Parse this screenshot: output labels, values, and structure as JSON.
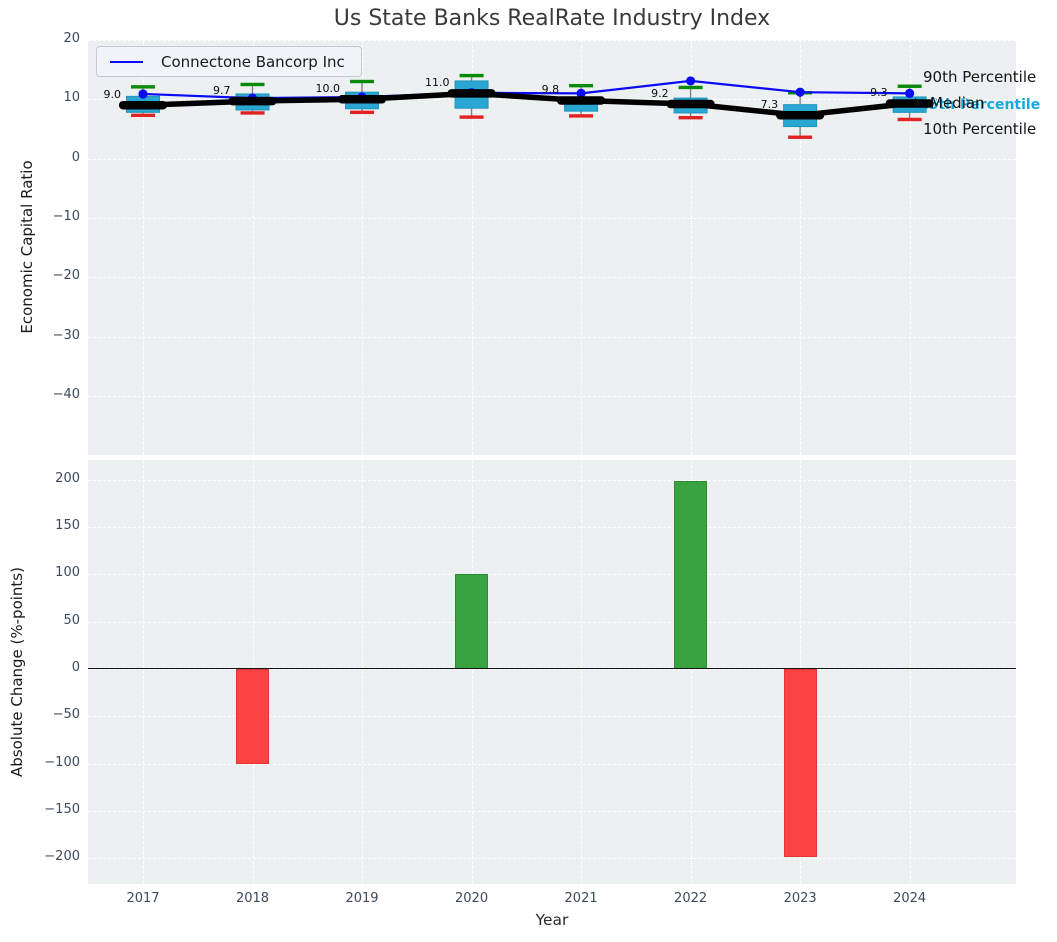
{
  "title": "Us State Banks RealRate Industry Index",
  "legend": {
    "label": "Connectone Bancorp Inc"
  },
  "annotations": {
    "p90": {
      "text": "90th Percentile",
      "color": "#141414"
    },
    "median": {
      "text": "Median",
      "color": "#141414"
    },
    "p25": {
      "text": "25th Percentile",
      "color": "#17a8dc"
    },
    "p10": {
      "text": "10th Percentile",
      "color": "#141414"
    }
  },
  "top_axis": {
    "ylabel": "Economic Capital Ratio"
  },
  "bottom_axis": {
    "ylabel": "Absolute Change (%-points)",
    "xlabel": "Year"
  },
  "colors": {
    "axes_background": "#ecf0f1",
    "grid": "#ffffff",
    "box_fill": "#29a6d2",
    "whisker": "#7f7f7f",
    "cap_90th": "#0a8a0a",
    "cap_10th": "#e32222",
    "median_line": "#000000",
    "company_line": "#0a0af5",
    "bar_positive": "#3aa341",
    "bar_negative": "#fc4343",
    "tick_label": "#3d4a5c",
    "title_color": "#3a3a3a"
  },
  "chart_data": [
    {
      "type": "line",
      "subplot": "top",
      "title": "Us State Banks RealRate Industry Index",
      "ylabel": "Economic Capital Ratio",
      "x": [
        2017,
        2018,
        2019,
        2020,
        2021,
        2022,
        2023,
        2024
      ],
      "yticks": [
        20,
        10,
        0,
        -10,
        -20,
        -30,
        -40
      ],
      "ylim": [
        -50,
        20
      ],
      "grid": true,
      "legend_position": "upper left",
      "series": [
        {
          "name": "Connectone Bancorp Inc",
          "style": "line+circle-marker",
          "color": "#0a0af5",
          "values": [
            10.9,
            10.2,
            10.4,
            11.1,
            11.0,
            13.1,
            11.2,
            11.0
          ]
        },
        {
          "name": "Median",
          "style": "thick-line+dash-marker",
          "color": "#000000",
          "values": [
            9.0,
            9.7,
            10.0,
            11.0,
            9.8,
            9.2,
            7.3,
            9.3
          ],
          "point_labels": [
            "9.0",
            "9.7",
            "10.0",
            "11.0",
            "9.8",
            "9.2",
            "7.3",
            "9.3"
          ]
        }
      ],
      "percentile_boxes": {
        "p90": [
          12.1,
          12.5,
          13.0,
          14.0,
          12.3,
          12.0,
          11.1,
          12.2
        ],
        "p75": [
          10.5,
          10.9,
          11.2,
          13.1,
          10.4,
          10.2,
          9.1,
          10.4
        ],
        "p25": [
          7.8,
          8.2,
          8.4,
          8.5,
          8.0,
          7.7,
          5.4,
          7.8
        ],
        "p10": [
          7.3,
          7.7,
          7.8,
          7.0,
          7.2,
          6.9,
          3.6,
          6.6
        ]
      },
      "right_labels": [
        "90th Percentile",
        "Median",
        "25th Percentile",
        "10th Percentile"
      ]
    },
    {
      "type": "bar",
      "subplot": "bottom",
      "xlabel": "Year",
      "ylabel": "Absolute Change (%-points)",
      "categories": [
        2017,
        2018,
        2019,
        2020,
        2021,
        2022,
        2023,
        2024
      ],
      "values": [
        0,
        -100,
        0,
        100,
        0,
        198,
        -198,
        0
      ],
      "yticks": [
        200,
        150,
        100,
        50,
        0,
        -50,
        -100,
        -150,
        -200
      ],
      "ylim": [
        -225,
        220
      ],
      "grid": true,
      "positive_color": "#3aa341",
      "negative_color": "#fc4343"
    }
  ]
}
